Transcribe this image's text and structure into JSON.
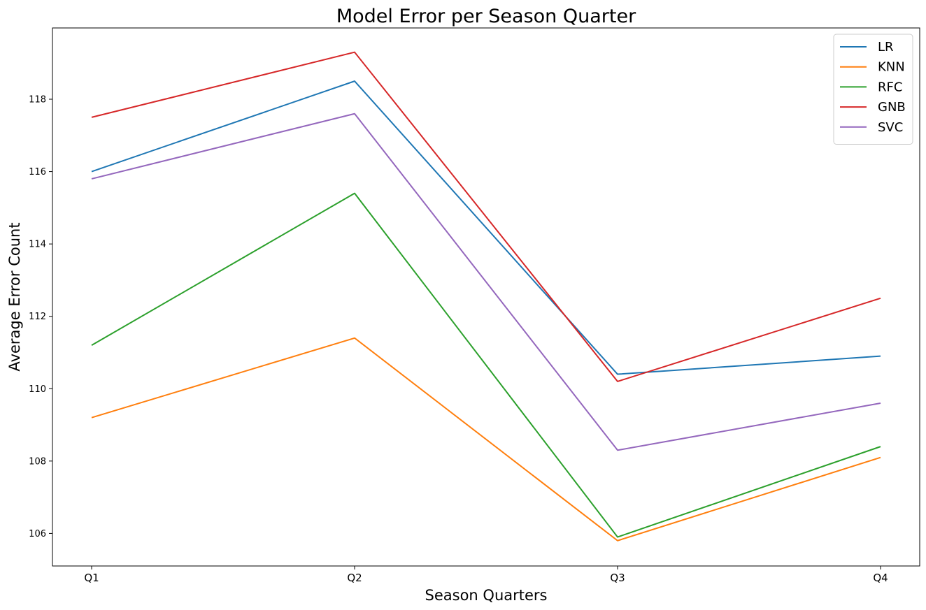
{
  "chart_data": {
    "type": "line",
    "title": "Model Error per Season Quarter",
    "xlabel": "Season Quarters",
    "ylabel": "Average Error Count",
    "categories": [
      "Q1",
      "Q2",
      "Q3",
      "Q4"
    ],
    "ylim": [
      105.1,
      119.97
    ],
    "yticks": [
      106,
      108,
      110,
      112,
      114,
      116,
      118
    ],
    "grid": false,
    "legend_position": "top-right",
    "series": [
      {
        "name": "LR",
        "color": "#1f77b4",
        "values": [
          116.0,
          118.5,
          110.4,
          110.9
        ]
      },
      {
        "name": "KNN",
        "color": "#ff7f0e",
        "values": [
          109.2,
          111.4,
          105.8,
          108.1
        ]
      },
      {
        "name": "RFC",
        "color": "#2ca02c",
        "values": [
          111.2,
          115.4,
          105.9,
          108.4
        ]
      },
      {
        "name": "GNB",
        "color": "#d62728",
        "values": [
          117.5,
          119.3,
          110.2,
          112.5
        ]
      },
      {
        "name": "SVC",
        "color": "#9467bd",
        "values": [
          115.8,
          117.6,
          108.3,
          109.6
        ]
      }
    ]
  }
}
